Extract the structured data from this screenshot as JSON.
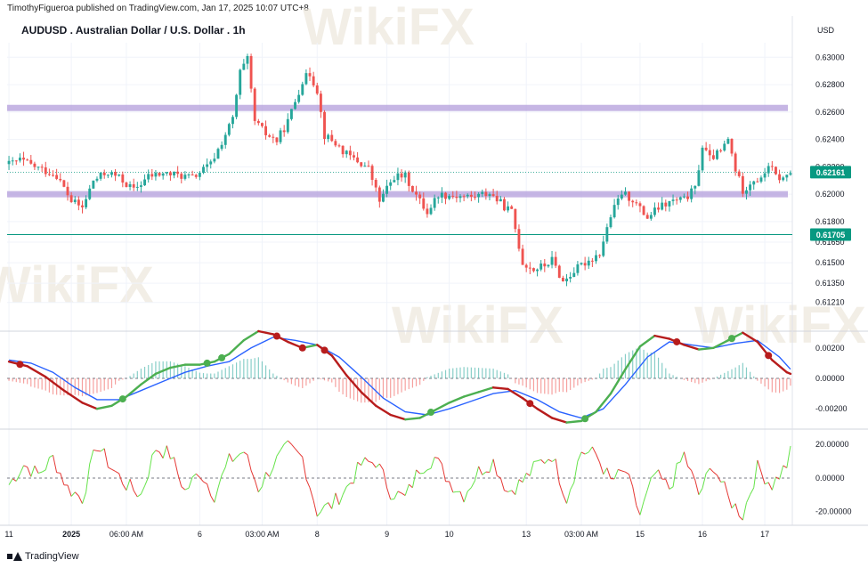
{
  "header": {
    "publisher": "TimothyFigueroa published on TradingView.com, Jan 17, 2025 10:07 UTC+8",
    "symbol": "AUDUSD . Australian Dollar / U.S. Dollar . 1h",
    "currency": "USD"
  },
  "footer": {
    "brand": "TradingView"
  },
  "watermark": "WikiFX",
  "colors": {
    "up": "#26a69a",
    "down": "#ef5350",
    "level_band": "#b39ddb",
    "macd_up": "#4caf50",
    "macd_down": "#b71c1c",
    "signal": "#2962ff",
    "osc_up": "#66e34a",
    "osc_down": "#e53935",
    "price_label": "#089981"
  },
  "chart_data": [
    {
      "type": "candlestick",
      "pane": "price",
      "ylim": [
        0.6113,
        0.6308
      ],
      "yticks": [
        "0.63000",
        "0.62800",
        "0.62600",
        "0.62400",
        "0.62200",
        "0.62000",
        "0.61800",
        "0.61650",
        "0.61500",
        "0.61350",
        "0.61210"
      ],
      "ytick_values": [
        0.63,
        0.628,
        0.626,
        0.624,
        0.622,
        0.62,
        0.618,
        0.6165,
        0.615,
        0.6135,
        0.6121
      ],
      "xticks": [
        "11",
        "2025",
        "06:00 AM",
        "6",
        "03:00 AM",
        "8",
        "9",
        "10",
        "13",
        "03:00 AM",
        "15",
        "16",
        "17"
      ],
      "xtick_index": [
        0,
        17,
        32,
        52,
        69,
        84,
        103,
        120,
        141,
        156,
        172,
        189,
        206
      ],
      "bar_count": 214,
      "current_price": "0.62161",
      "current_price_value": 0.62161,
      "line_label": "0.61705",
      "line_value": 0.61705,
      "resistance_band": 0.6263,
      "support_band": 0.62,
      "close_path": [
        [
          0,
          0.6222
        ],
        [
          3,
          0.6225
        ],
        [
          8,
          0.6219
        ],
        [
          13,
          0.6214
        ],
        [
          17,
          0.6195
        ],
        [
          20,
          0.619
        ],
        [
          23,
          0.621
        ],
        [
          27,
          0.6216
        ],
        [
          30,
          0.6212
        ],
        [
          34,
          0.6203
        ],
        [
          38,
          0.6213
        ],
        [
          42,
          0.6215
        ],
        [
          46,
          0.6214
        ],
        [
          50,
          0.6212
        ],
        [
          55,
          0.6222
        ],
        [
          58,
          0.6238
        ],
        [
          61,
          0.6255
        ],
        [
          63,
          0.6289
        ],
        [
          65,
          0.6298
        ],
        [
          67,
          0.6253
        ],
        [
          70,
          0.6244
        ],
        [
          73,
          0.6239
        ],
        [
          76,
          0.6253
        ],
        [
          78,
          0.6268
        ],
        [
          80,
          0.6283
        ],
        [
          82,
          0.6288
        ],
        [
          84,
          0.6276
        ],
        [
          86,
          0.6243
        ],
        [
          89,
          0.6237
        ],
        [
          92,
          0.6229
        ],
        [
          95,
          0.6224
        ],
        [
          98,
          0.6219
        ],
        [
          101,
          0.6195
        ],
        [
          105,
          0.6213
        ],
        [
          108,
          0.6213
        ],
        [
          111,
          0.6199
        ],
        [
          114,
          0.6187
        ],
        [
          117,
          0.62
        ],
        [
          121,
          0.6199
        ],
        [
          126,
          0.6198
        ],
        [
          131,
          0.6201
        ],
        [
          135,
          0.6191
        ],
        [
          137,
          0.6187
        ],
        [
          140,
          0.615
        ],
        [
          143,
          0.6145
        ],
        [
          146,
          0.6148
        ],
        [
          148,
          0.6152
        ],
        [
          151,
          0.6136
        ],
        [
          154,
          0.6144
        ],
        [
          157,
          0.615
        ],
        [
          161,
          0.6157
        ],
        [
          164,
          0.6184
        ],
        [
          167,
          0.6201
        ],
        [
          170,
          0.6196
        ],
        [
          172,
          0.6189
        ],
        [
          174,
          0.6183
        ],
        [
          177,
          0.619
        ],
        [
          181,
          0.6195
        ],
        [
          184,
          0.6196
        ],
        [
          187,
          0.6204
        ],
        [
          189,
          0.6235
        ],
        [
          191,
          0.6226
        ],
        [
          194,
          0.6231
        ],
        [
          196,
          0.624
        ],
        [
          198,
          0.6218
        ],
        [
          200,
          0.6203
        ],
        [
          203,
          0.6211
        ],
        [
          205,
          0.621
        ],
        [
          207,
          0.6222
        ],
        [
          209,
          0.6213
        ],
        [
          211,
          0.6211
        ],
        [
          213,
          0.6216
        ]
      ]
    },
    {
      "type": "line",
      "pane": "macd",
      "ylim": [
        -0.0031,
        0.0031
      ],
      "yticks": [
        "0.00200",
        "0.00000",
        "-0.00200"
      ],
      "ytick_values": [
        0.002,
        0.0,
        -0.002
      ],
      "series": [
        {
          "name": "",
          "role": "macd",
          "points": [
            [
              0,
              0.0011
            ],
            [
              5,
              0.0008
            ],
            [
              10,
              0.0001
            ],
            [
              15,
              -0.0008
            ],
            [
              20,
              -0.0016
            ],
            [
              24,
              -0.002
            ],
            [
              28,
              -0.0018
            ],
            [
              32,
              -0.0012
            ],
            [
              36,
              -0.0004
            ],
            [
              40,
              0.0003
            ],
            [
              44,
              0.0007
            ],
            [
              48,
              0.0009
            ],
            [
              52,
              0.0009
            ],
            [
              56,
              0.0011
            ],
            [
              60,
              0.0016
            ],
            [
              64,
              0.0025
            ],
            [
              68,
              0.0031
            ],
            [
              72,
              0.0029
            ],
            [
              76,
              0.0024
            ],
            [
              80,
              0.002
            ],
            [
              84,
              0.0022
            ],
            [
              88,
              0.0015
            ],
            [
              92,
              0.0002
            ],
            [
              96,
              -0.0009
            ],
            [
              100,
              -0.0018
            ],
            [
              104,
              -0.0024
            ],
            [
              108,
              -0.0027
            ],
            [
              112,
              -0.0026
            ],
            [
              116,
              -0.0021
            ],
            [
              120,
              -0.0016
            ],
            [
              124,
              -0.0012
            ],
            [
              128,
              -0.0009
            ],
            [
              132,
              -0.0006
            ],
            [
              136,
              -0.0007
            ],
            [
              140,
              -0.0013
            ],
            [
              144,
              -0.002
            ],
            [
              148,
              -0.0026
            ],
            [
              152,
              -0.0029
            ],
            [
              156,
              -0.0028
            ],
            [
              160,
              -0.0022
            ],
            [
              164,
              -0.001
            ],
            [
              168,
              0.0006
            ],
            [
              172,
              0.0021
            ],
            [
              176,
              0.0028
            ],
            [
              180,
              0.0026
            ],
            [
              184,
              0.0022
            ],
            [
              188,
              0.0019
            ],
            [
              192,
              0.002
            ],
            [
              196,
              0.0025
            ],
            [
              200,
              0.003
            ],
            [
              204,
              0.0024
            ],
            [
              208,
              0.0012
            ],
            [
              212,
              0.0004
            ],
            [
              213,
              0.0003
            ]
          ]
        },
        {
          "name": "",
          "role": "signal",
          "points": [
            [
              0,
              0.0012
            ],
            [
              6,
              0.001
            ],
            [
              12,
              0.0004
            ],
            [
              18,
              -0.0006
            ],
            [
              24,
              -0.0014
            ],
            [
              30,
              -0.0014
            ],
            [
              36,
              -0.0008
            ],
            [
              42,
              -0.0002
            ],
            [
              48,
              0.0004
            ],
            [
              54,
              0.0008
            ],
            [
              60,
              0.0011
            ],
            [
              66,
              0.002
            ],
            [
              72,
              0.0027
            ],
            [
              78,
              0.0025
            ],
            [
              84,
              0.0022
            ],
            [
              90,
              0.0014
            ],
            [
              96,
              0.0001
            ],
            [
              102,
              -0.0013
            ],
            [
              108,
              -0.0022
            ],
            [
              114,
              -0.0024
            ],
            [
              120,
              -0.002
            ],
            [
              126,
              -0.0015
            ],
            [
              132,
              -0.001
            ],
            [
              138,
              -0.0008
            ],
            [
              144,
              -0.0014
            ],
            [
              150,
              -0.0022
            ],
            [
              156,
              -0.0026
            ],
            [
              162,
              -0.002
            ],
            [
              168,
              -0.0004
            ],
            [
              174,
              0.0014
            ],
            [
              180,
              0.0024
            ],
            [
              186,
              0.0022
            ],
            [
              192,
              0.002
            ],
            [
              198,
              0.0023
            ],
            [
              204,
              0.0025
            ],
            [
              210,
              0.0014
            ],
            [
              213,
              0.0006
            ]
          ]
        }
      ],
      "cross_points": [
        3,
        31,
        54,
        58,
        73,
        80,
        86,
        115,
        142,
        157,
        182,
        197,
        207
      ]
    },
    {
      "type": "line",
      "pane": "oscillator",
      "ylim": [
        -26,
        27
      ],
      "yticks": [
        "20.00000",
        "0.00000",
        "-20.00000"
      ],
      "ytick_values": [
        20,
        0,
        -20
      ],
      "series": [
        {
          "name": "",
          "points": [
            [
              0,
              -4
            ],
            [
              4,
              8
            ],
            [
              8,
              2
            ],
            [
              12,
              12
            ],
            [
              16,
              -6
            ],
            [
              20,
              -12
            ],
            [
              24,
              20
            ],
            [
              28,
              6
            ],
            [
              32,
              -4
            ],
            [
              36,
              -10
            ],
            [
              40,
              18
            ],
            [
              44,
              14
            ],
            [
              48,
              -8
            ],
            [
              52,
              4
            ],
            [
              56,
              -10
            ],
            [
              60,
              10
            ],
            [
              64,
              16
            ],
            [
              68,
              -6
            ],
            [
              72,
              8
            ],
            [
              76,
              18
            ],
            [
              80,
              12
            ],
            [
              84,
              -20
            ],
            [
              88,
              -16
            ],
            [
              92,
              -6
            ],
            [
              96,
              8
            ],
            [
              100,
              10
            ],
            [
              104,
              -8
            ],
            [
              108,
              -12
            ],
            [
              112,
              6
            ],
            [
              116,
              12
            ],
            [
              120,
              -2
            ],
            [
              124,
              -10
            ],
            [
              128,
              4
            ],
            [
              132,
              10
            ],
            [
              136,
              -8
            ],
            [
              140,
              -2
            ],
            [
              144,
              8
            ],
            [
              148,
              14
            ],
            [
              152,
              -12
            ],
            [
              156,
              16
            ],
            [
              160,
              14
            ],
            [
              164,
              -2
            ],
            [
              168,
              4
            ],
            [
              172,
              -22
            ],
            [
              176,
              2
            ],
            [
              180,
              -6
            ],
            [
              184,
              14
            ],
            [
              188,
              -10
            ],
            [
              192,
              8
            ],
            [
              196,
              -12
            ],
            [
              200,
              -22
            ],
            [
              204,
              6
            ],
            [
              208,
              -4
            ],
            [
              212,
              8
            ],
            [
              213,
              15
            ]
          ]
        }
      ]
    }
  ]
}
